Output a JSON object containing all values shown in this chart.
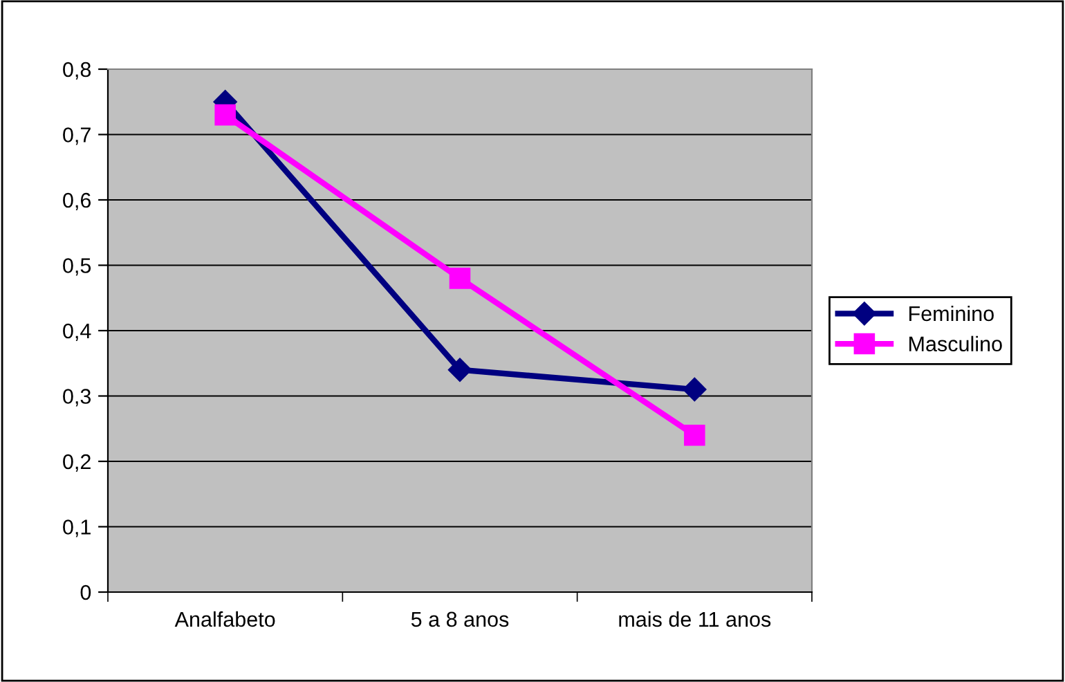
{
  "chart_data": {
    "type": "line",
    "categories": [
      "Analfabeto",
      "5 a 8 anos",
      "mais de 11 anos"
    ],
    "series": [
      {
        "name": "Feminino",
        "color": "#000080",
        "marker": "diamond",
        "values": [
          0.75,
          0.34,
          0.31
        ]
      },
      {
        "name": "Masculino",
        "color": "#ff00ff",
        "marker": "square",
        "values": [
          0.73,
          0.48,
          0.24
        ]
      }
    ],
    "ylim": [
      0,
      0.8
    ],
    "yticks": [
      {
        "value": 0,
        "label": "0"
      },
      {
        "value": 0.1,
        "label": "0,1"
      },
      {
        "value": 0.2,
        "label": "0,2"
      },
      {
        "value": 0.3,
        "label": "0,3"
      },
      {
        "value": 0.4,
        "label": "0,4"
      },
      {
        "value": 0.5,
        "label": "0,5"
      },
      {
        "value": 0.6,
        "label": "0,6"
      },
      {
        "value": 0.7,
        "label": "0,7"
      },
      {
        "value": 0.8,
        "label": "0,8"
      }
    ],
    "grid": "y",
    "legend": "right",
    "line_style": "solid"
  }
}
